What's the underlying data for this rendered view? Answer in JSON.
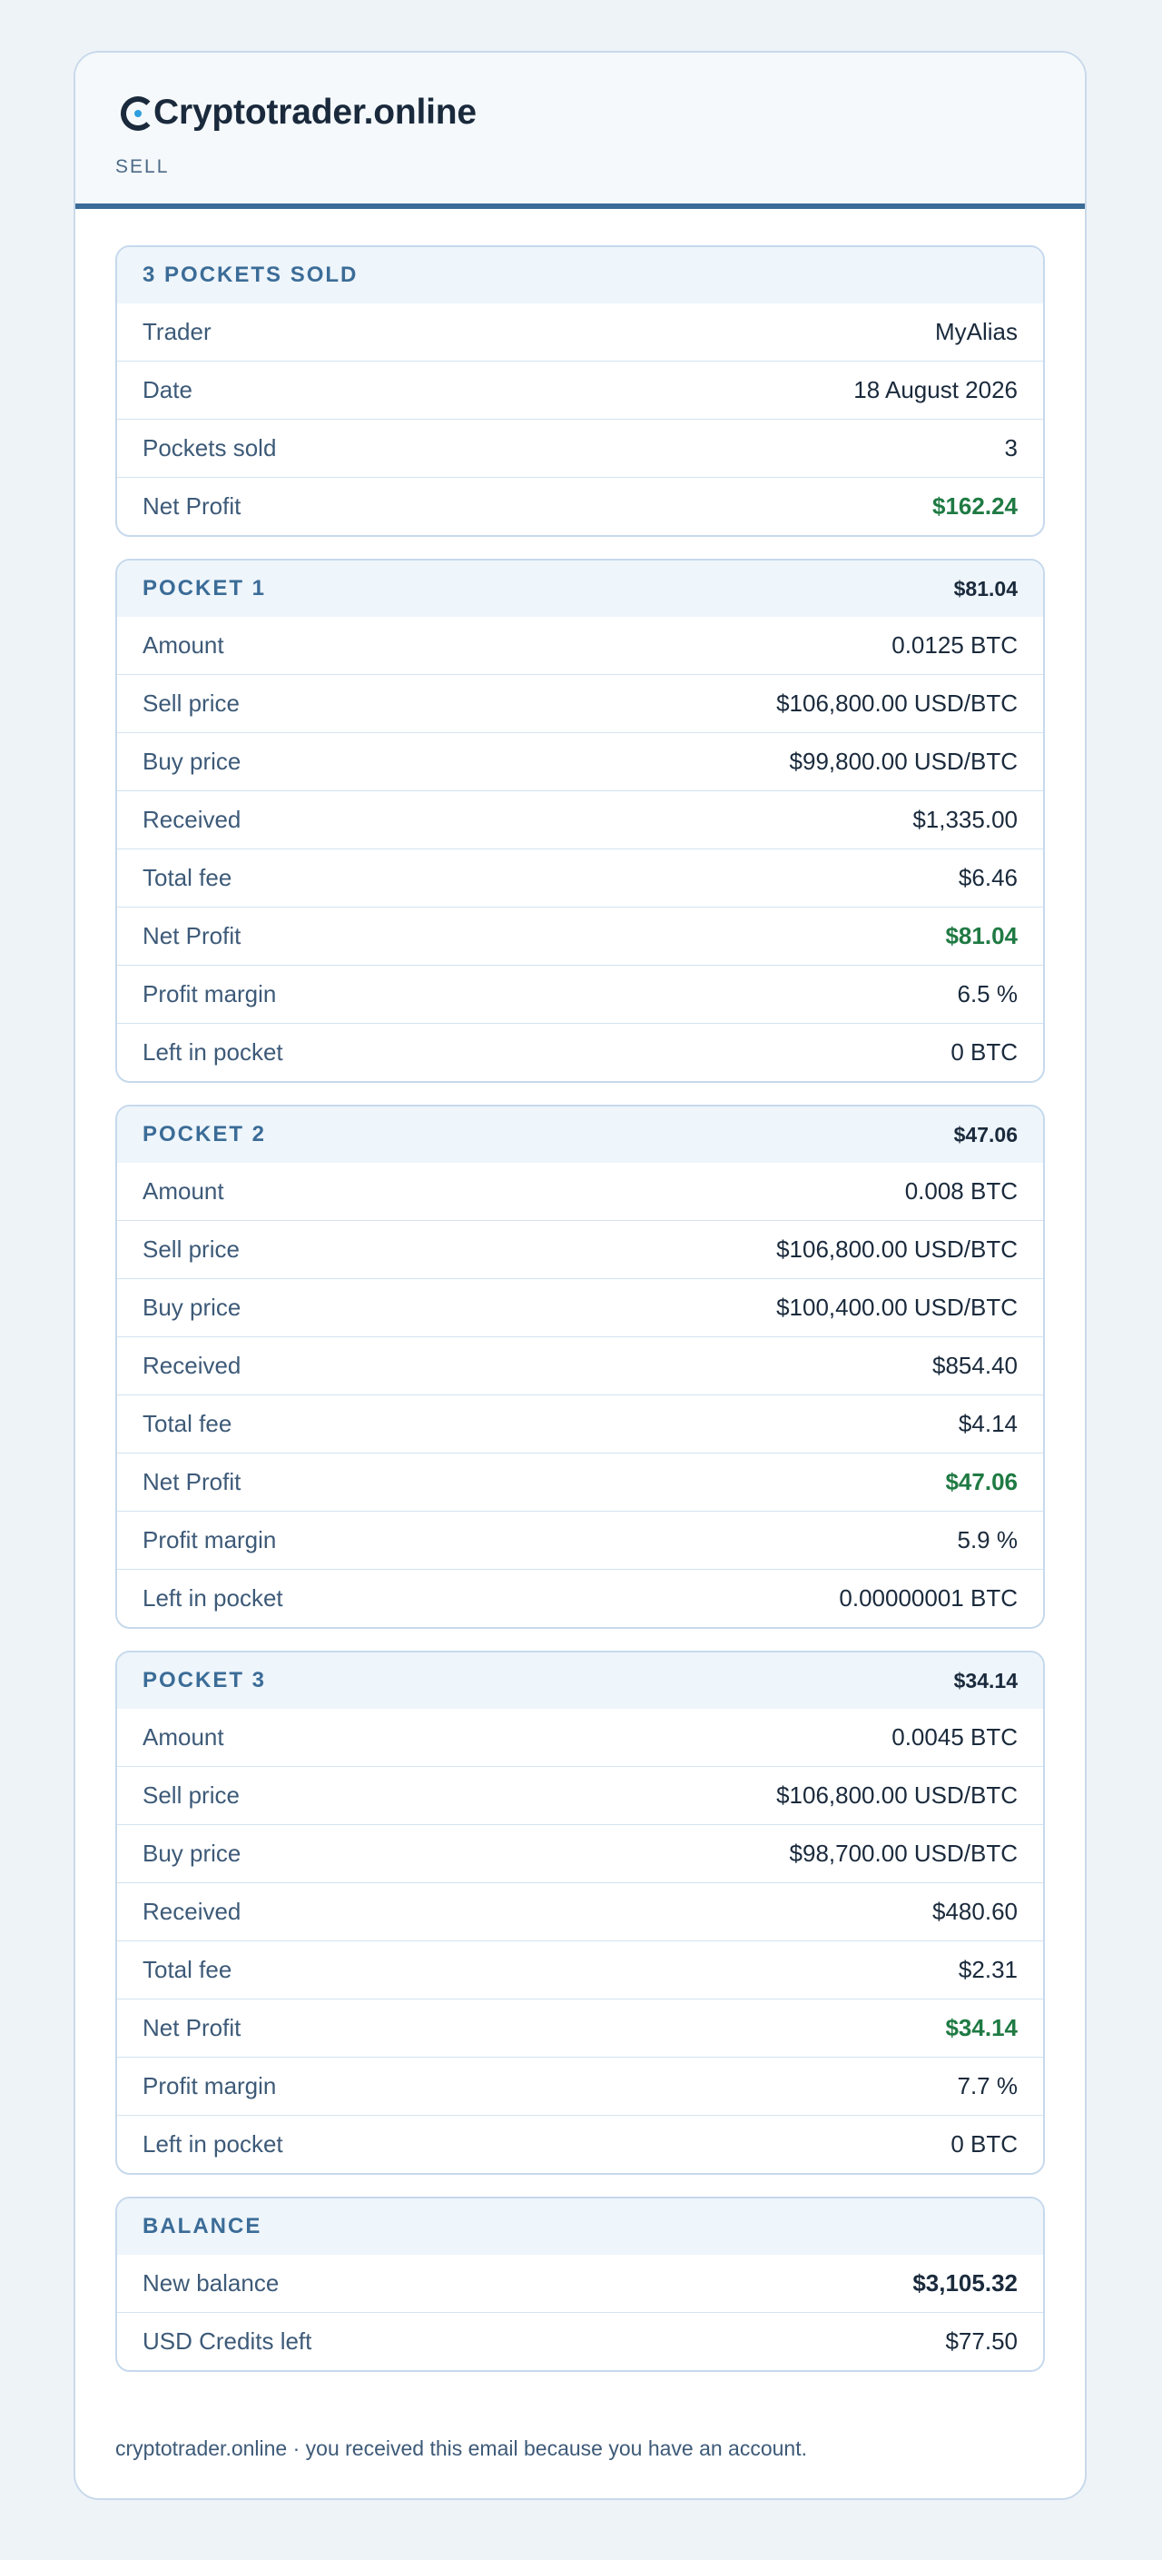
{
  "brand": {
    "name": "Cryptotrader.online",
    "mark_icon": "c-circle-logo"
  },
  "header": {
    "subtitle": "SELL"
  },
  "summary": {
    "title": "3 POCKETS SOLD",
    "rows": [
      {
        "label": "Trader",
        "value": "MyAlias"
      },
      {
        "label": "Date",
        "value": "18 August 2026"
      },
      {
        "label": "Pockets sold",
        "value": "3"
      },
      {
        "label": "Net Profit",
        "value": "$162.24"
      }
    ]
  },
  "pockets": [
    {
      "title": "POCKET 1",
      "total": "$81.04",
      "rows": [
        {
          "label": "Amount",
          "value": "0.0125 BTC"
        },
        {
          "label": "Sell price",
          "value": "$106,800.00 USD/BTC"
        },
        {
          "label": "Buy price",
          "value": "$99,800.00 USD/BTC"
        },
        {
          "label": "Received",
          "value": "$1,335.00"
        },
        {
          "label": "Total fee",
          "value": "$6.46"
        },
        {
          "label": "Net Profit",
          "value": "$81.04"
        },
        {
          "label": "Profit margin",
          "value": "6.5 %"
        },
        {
          "label": "Left in pocket",
          "value": "0 BTC"
        }
      ]
    },
    {
      "title": "POCKET 2",
      "total": "$47.06",
      "rows": [
        {
          "label": "Amount",
          "value": "0.008 BTC"
        },
        {
          "label": "Sell price",
          "value": "$106,800.00 USD/BTC"
        },
        {
          "label": "Buy price",
          "value": "$100,400.00 USD/BTC"
        },
        {
          "label": "Received",
          "value": "$854.40"
        },
        {
          "label": "Total fee",
          "value": "$4.14"
        },
        {
          "label": "Net Profit",
          "value": "$47.06"
        },
        {
          "label": "Profit margin",
          "value": "5.9 %"
        },
        {
          "label": "Left in pocket",
          "value": "0.00000001 BTC"
        }
      ]
    },
    {
      "title": "POCKET 3",
      "total": "$34.14",
      "rows": [
        {
          "label": "Amount",
          "value": "0.0045 BTC"
        },
        {
          "label": "Sell price",
          "value": "$106,800.00 USD/BTC"
        },
        {
          "label": "Buy price",
          "value": "$98,700.00 USD/BTC"
        },
        {
          "label": "Received",
          "value": "$480.60"
        },
        {
          "label": "Total fee",
          "value": "$2.31"
        },
        {
          "label": "Net Profit",
          "value": "$34.14"
        },
        {
          "label": "Profit margin",
          "value": "7.7 %"
        },
        {
          "label": "Left in pocket",
          "value": "0 BTC"
        }
      ]
    }
  ],
  "balance": {
    "title": "BALANCE",
    "rows": [
      {
        "label": "New balance",
        "value": "$3,105.32"
      },
      {
        "label": "USD Credits left",
        "value": "$77.50"
      }
    ]
  },
  "footer": {
    "text": "cryptotrader.online · you received this email because you have an account."
  },
  "colors": {
    "accent": "#3b6c97",
    "profit": "#1f7a43",
    "background": "#eef3f8"
  }
}
